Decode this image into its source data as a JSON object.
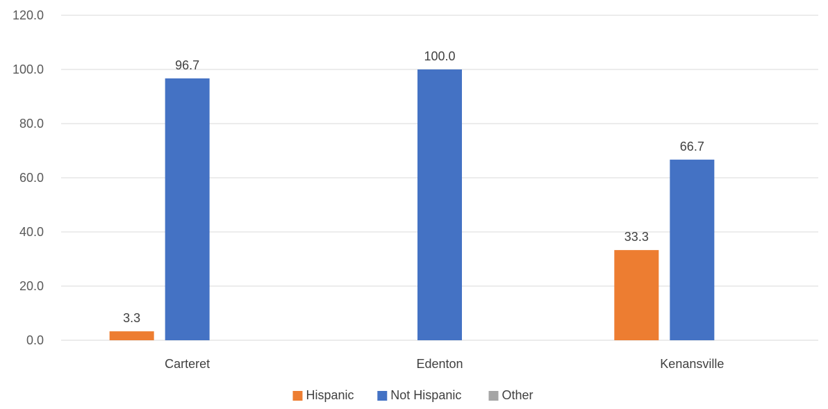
{
  "chart_data": {
    "type": "bar",
    "categories": [
      "Carteret",
      "Edenton",
      "Kenansville"
    ],
    "series": [
      {
        "name": "Hispanic",
        "values": [
          3.3,
          0.0,
          33.3
        ],
        "color": "#ED7D31",
        "labels": [
          "3.3",
          null,
          "33.3"
        ]
      },
      {
        "name": "Not Hispanic",
        "values": [
          96.7,
          100.0,
          66.7
        ],
        "color": "#4472C4",
        "labels": [
          "96.7",
          "100.0",
          "66.7"
        ]
      },
      {
        "name": "Other",
        "values": [
          0.0,
          0.0,
          0.0
        ],
        "color": "#A5A5A5",
        "labels": [
          null,
          null,
          null
        ]
      }
    ],
    "ylim": [
      0,
      120
    ],
    "yticks": [
      "0.0",
      "20.0",
      "40.0",
      "60.0",
      "80.0",
      "100.0",
      "120.0"
    ],
    "grid": true,
    "legend_position": "bottom",
    "title": "",
    "xlabel": "",
    "ylabel": ""
  }
}
